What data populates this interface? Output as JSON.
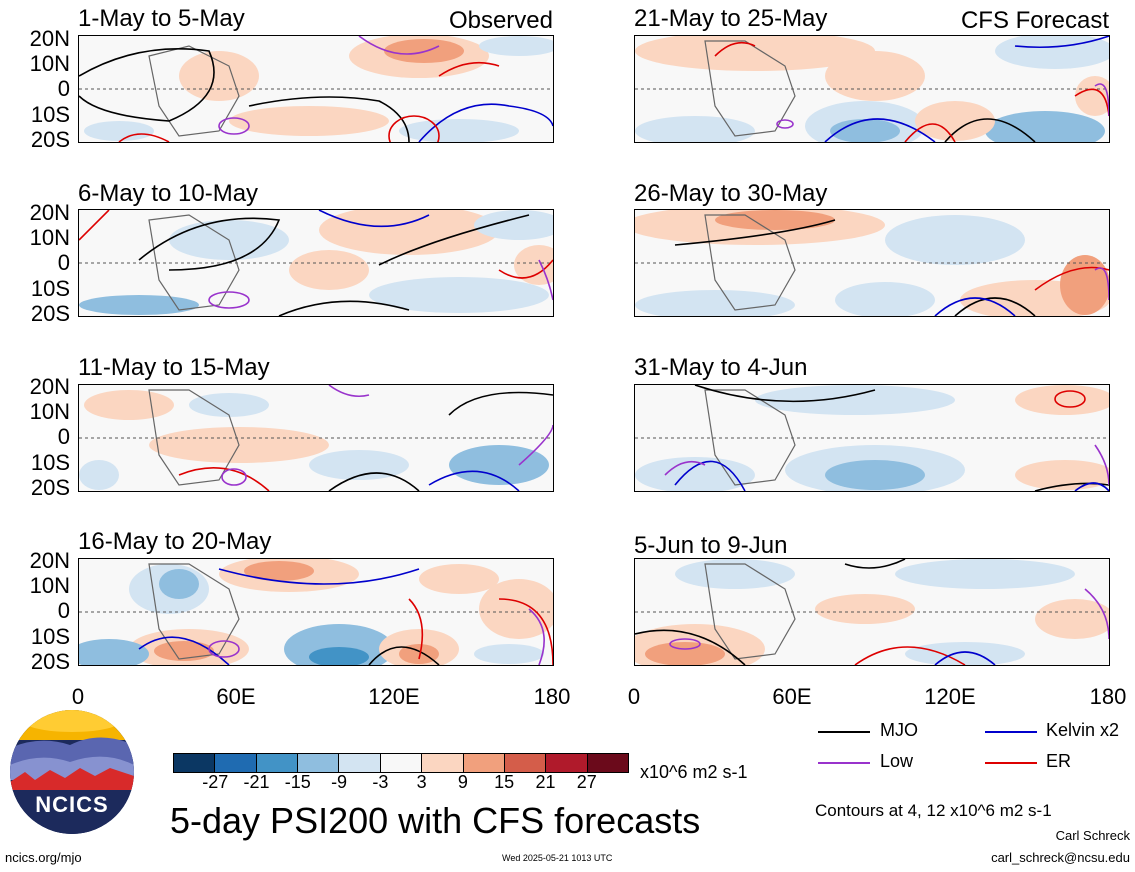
{
  "panels": {
    "left": [
      {
        "date_range": "1-May to 5-May",
        "corner_label": "Observed"
      },
      {
        "date_range": "6-May to 10-May",
        "corner_label": ""
      },
      {
        "date_range": "11-May to 15-May",
        "corner_label": ""
      },
      {
        "date_range": "16-May to 20-May",
        "corner_label": ""
      }
    ],
    "right": [
      {
        "date_range": "21-May to 25-May",
        "corner_label": "CFS Forecast"
      },
      {
        "date_range": "26-May to 30-May",
        "corner_label": ""
      },
      {
        "date_range": "31-May to 4-Jun",
        "corner_label": ""
      },
      {
        "date_range": "5-Jun to 9-Jun",
        "corner_label": ""
      }
    ]
  },
  "lat_labels": [
    "20N",
    "10N",
    "0",
    "10S",
    "20S"
  ],
  "lon_labels": [
    "0",
    "60E",
    "120E",
    "180"
  ],
  "colorbar": {
    "ticks": [
      "-27",
      "-21",
      "-15",
      "-9",
      "-3",
      "3",
      "9",
      "15",
      "21",
      "27"
    ],
    "colors": [
      "#0b3763",
      "#1f6bb1",
      "#4293c6",
      "#8fbedf",
      "#d3e4f2",
      "#f8f8f8",
      "#fbd6c1",
      "#f1a07d",
      "#d45d4a",
      "#b01a2b",
      "#6b0a1b"
    ],
    "units": "x10^6 m2 s-1"
  },
  "legend": {
    "items": [
      {
        "label": "MJO",
        "color": "#000000"
      },
      {
        "label": "Kelvin x2",
        "color": "#0000cc"
      },
      {
        "label": "Low",
        "color": "#9933cc"
      },
      {
        "label": "ER",
        "color": "#dd0000"
      }
    ],
    "contours_note": "Contours at 4, 12 x10^6 m2 s-1"
  },
  "title": "5-day PSI200 with CFS forecasts",
  "logo_text": "NCICS",
  "footer": {
    "url": "ncics.org/mjo",
    "timestamp": "Wed 2025-05-21 1013 UTC",
    "author": "Carl Schreck",
    "email": "carl_schreck@ncsu.edu"
  }
}
